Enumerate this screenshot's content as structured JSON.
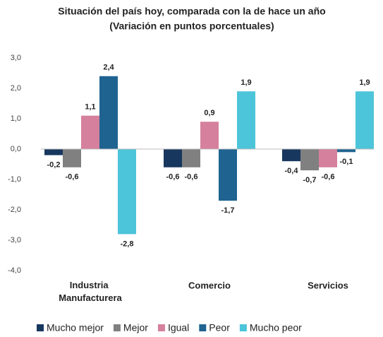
{
  "chart_data": {
    "type": "bar",
    "title": "Situación del país hoy, comparada con la de hace un año",
    "subtitle": "(Variación en puntos porcentuales)",
    "categories": [
      "Industria Manufacturera",
      "Comercio",
      "Servicios"
    ],
    "series": [
      {
        "name": "Mucho mejor",
        "color": "#17375e",
        "values": [
          -0.2,
          -0.6,
          -0.4
        ],
        "value_labels": [
          "-0,2",
          "-0,6",
          "-0,4"
        ]
      },
      {
        "name": "Mejor",
        "color": "#808080",
        "values": [
          -0.6,
          -0.6,
          -0.7
        ],
        "value_labels": [
          "-0,6",
          "-0,6",
          "-0,7"
        ]
      },
      {
        "name": "Igual",
        "color": "#d5809d",
        "values": [
          1.1,
          0.9,
          -0.6
        ],
        "value_labels": [
          "1,1",
          "0,9",
          "-0,6"
        ]
      },
      {
        "name": "Peor",
        "color": "#1f6391",
        "values": [
          2.4,
          -1.7,
          -0.1
        ],
        "value_labels": [
          "2,4",
          "-1,7",
          "-0,1"
        ]
      },
      {
        "name": "Mucho peor",
        "color": "#4cc4d9",
        "values": [
          -2.8,
          1.9,
          1.9
        ],
        "value_labels": [
          "-2,8",
          "1,9",
          "1,9"
        ]
      }
    ],
    "ylim": [
      -4,
      3
    ],
    "yticks": [
      {
        "value": -4,
        "label": "-4,0"
      },
      {
        "value": -3,
        "label": "-3,0"
      },
      {
        "value": -2,
        "label": "-2,0"
      },
      {
        "value": -1,
        "label": "-1,0"
      },
      {
        "value": 0,
        "label": "0,0"
      },
      {
        "value": 1,
        "label": "1,0"
      },
      {
        "value": 2,
        "label": "2,0"
      },
      {
        "value": 3,
        "label": "3,0"
      }
    ],
    "grid": false,
    "legend": "bottom"
  }
}
